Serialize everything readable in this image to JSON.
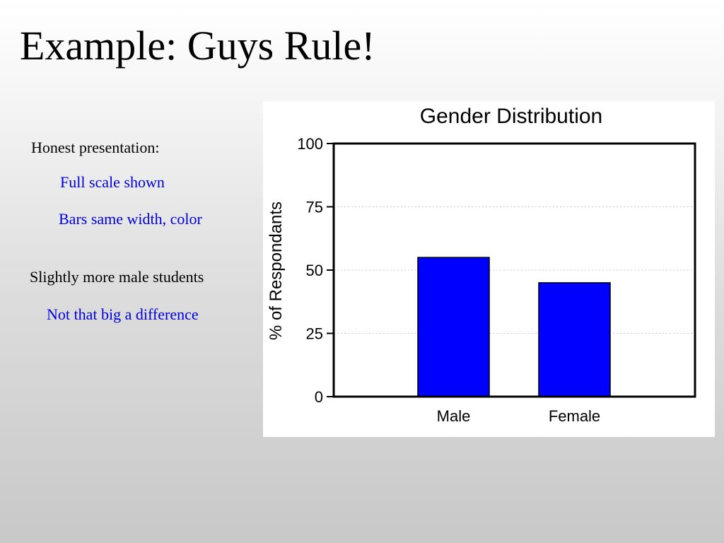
{
  "slide": {
    "title": "Example: Guys Rule!",
    "notes": [
      {
        "text": "Honest presentation:",
        "color": "#000000"
      },
      {
        "text": "Full scale shown",
        "color": "#0000dd"
      },
      {
        "text": "Bars same width, color",
        "color": "#0000dd"
      },
      {
        "text": "Slightly more male students",
        "color": "#000000"
      },
      {
        "text": "Not that big a difference",
        "color": "#0000dd"
      }
    ]
  },
  "chart_data": {
    "type": "bar",
    "title": "Gender Distribution",
    "ylabel": "% of Respondants",
    "xlabel": "",
    "categories": [
      "Male",
      "Female"
    ],
    "values": [
      55,
      45
    ],
    "ylim": [
      0,
      100
    ],
    "yticks": [
      0,
      25,
      50,
      75,
      100
    ],
    "ytick_labels": [
      "0",
      "25",
      "50",
      "75",
      "100"
    ],
    "grid": true,
    "bar_color": "#0000ff"
  }
}
